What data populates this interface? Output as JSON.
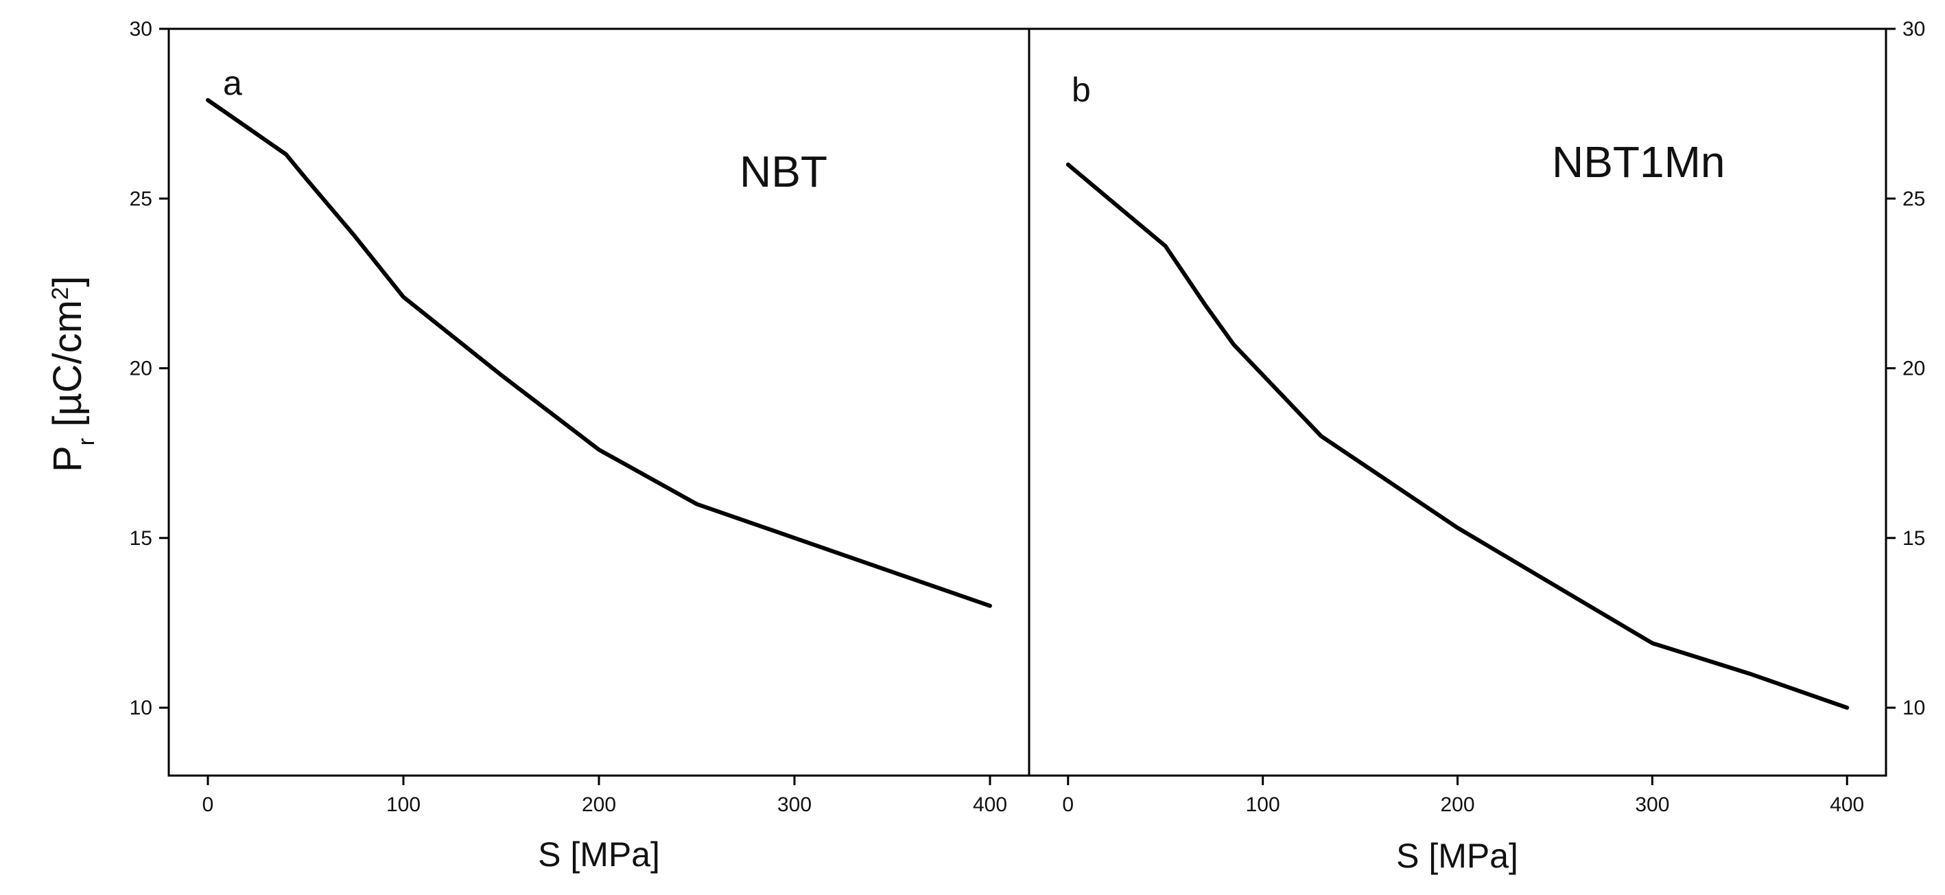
{
  "figure": {
    "ylabel": {
      "base": "P",
      "sub": "r",
      "unit": " [µC/cm",
      "sup": "2",
      "close": "]"
    }
  },
  "chart_data": [
    {
      "type": "line",
      "panel_label": "a",
      "annotation": "NBT",
      "xlabel": "S [MPa]",
      "xlim": [
        -20,
        420
      ],
      "ylim": [
        8,
        30
      ],
      "xticks": [
        0,
        100,
        200,
        300,
        400
      ],
      "yticks": [
        10,
        15,
        20,
        25,
        30
      ],
      "y_axis_side": "left",
      "grid": false,
      "series": [
        {
          "x": [
            0,
            20,
            40,
            50,
            75,
            100,
            150,
            200,
            250,
            300,
            350,
            400
          ],
          "y": [
            27.9,
            27.1,
            26.3,
            25.6,
            23.9,
            22.1,
            19.8,
            17.6,
            16.0,
            15.0,
            14.0,
            13.0
          ],
          "color": "#000000"
        }
      ]
    },
    {
      "type": "line",
      "panel_label": "b",
      "annotation": "NBT1Mn",
      "xlabel": "S [MPa]",
      "xlim": [
        -20,
        420
      ],
      "ylim": [
        8,
        30
      ],
      "xticks": [
        0,
        100,
        200,
        300,
        400
      ],
      "yticks": [
        10,
        15,
        20,
        25,
        30
      ],
      "y_axis_side": "right",
      "grid": false,
      "series": [
        {
          "x": [
            0,
            25,
            50,
            70,
            85,
            110,
            130,
            200,
            250,
            300,
            350,
            400
          ],
          "y": [
            26.0,
            24.8,
            23.6,
            21.9,
            20.7,
            19.2,
            18.0,
            15.3,
            13.6,
            11.9,
            11.0,
            10.0
          ],
          "color": "#000000"
        }
      ]
    }
  ]
}
